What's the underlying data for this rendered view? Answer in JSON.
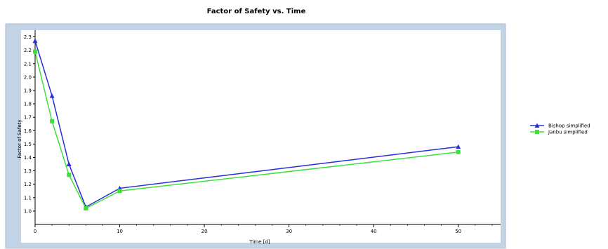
{
  "chart_data": {
    "type": "line",
    "title": "Factor of Safety vs. Time",
    "xlabel": "Time [d]",
    "ylabel": "Factor of Safety",
    "xlim": [
      0,
      55
    ],
    "ylim": [
      0.9,
      2.35
    ],
    "x_ticks": [
      "0",
      "10",
      "20",
      "30",
      "40",
      "50"
    ],
    "y_ticks": [
      "1.0",
      "1.1",
      "1.2",
      "1.3",
      "1.4",
      "1.5",
      "1.6",
      "1.7",
      "1.8",
      "1.9",
      "2.0",
      "2.1",
      "2.2",
      "2.3"
    ],
    "x_tick_values": [
      0,
      10,
      20,
      30,
      40,
      50
    ],
    "y_tick_values": [
      1.0,
      1.1,
      1.2,
      1.3,
      1.4,
      1.5,
      1.6,
      1.7,
      1.8,
      1.9,
      2.0,
      2.1,
      2.2,
      2.3
    ],
    "legend_position": "right",
    "grid": false,
    "colors": {
      "frame": "#c2d3e6",
      "plot_bg": "#ffffff"
    },
    "series": [
      {
        "name": "Bishop simplified",
        "color": "#2b2bd9",
        "marker": "triangle",
        "x": [
          0,
          2,
          4,
          6,
          10,
          50
        ],
        "y": [
          2.27,
          1.86,
          1.35,
          1.03,
          1.17,
          1.48
        ]
      },
      {
        "name": "Janbu simplified",
        "color": "#3ee03e",
        "marker": "square",
        "x": [
          0,
          2,
          4,
          6,
          10,
          50
        ],
        "y": [
          2.19,
          1.67,
          1.27,
          1.02,
          1.15,
          1.44
        ]
      }
    ]
  }
}
